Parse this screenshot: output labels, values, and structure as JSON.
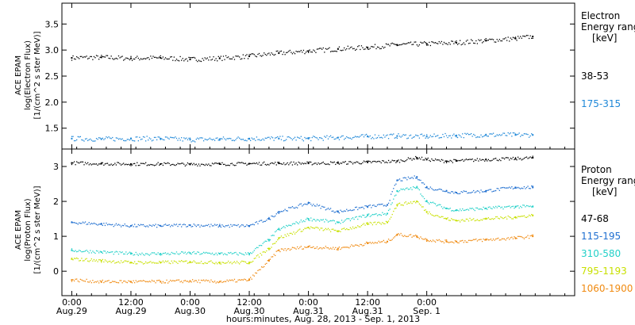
{
  "chart_data": [
    {
      "type": "scatter",
      "ylabel_lines": [
        "ACE EPAM",
        "log(Electron Flux)",
        "[1/(cm^2 s ster MeV)]"
      ],
      "y_ticks": [
        "3.5",
        "3.0",
        "2.5",
        "2.0",
        "1.5"
      ],
      "ylim": [
        1.1,
        3.9
      ],
      "legend_title": [
        "Electron",
        "Energy ranges",
        "[keV]"
      ],
      "series": [
        {
          "name": "38-53",
          "color": "#000000",
          "x": [
            0,
            6,
            12,
            18,
            24,
            30,
            36,
            42,
            48,
            54,
            60,
            66,
            72,
            78,
            84,
            90,
            93.5
          ],
          "values": [
            2.85,
            2.86,
            2.84,
            2.85,
            2.82,
            2.84,
            2.88,
            2.94,
            2.98,
            3.02,
            3.05,
            3.1,
            3.12,
            3.14,
            3.18,
            3.22,
            3.26
          ]
        },
        {
          "name": "175-315",
          "color": "#1f88d8",
          "x": [
            0,
            6,
            12,
            18,
            24,
            30,
            36,
            42,
            48,
            54,
            60,
            66,
            72,
            78,
            84,
            90,
            93.5
          ],
          "values": [
            1.3,
            1.29,
            1.3,
            1.3,
            1.28,
            1.29,
            1.3,
            1.3,
            1.3,
            1.32,
            1.34,
            1.35,
            1.34,
            1.36,
            1.37,
            1.37,
            1.37
          ]
        }
      ]
    },
    {
      "type": "scatter",
      "ylabel_lines": [
        "ACE EPAM",
        "log(Proton Flux)",
        "[1/(cm^2 s ster MeV)]"
      ],
      "y_ticks": [
        "3",
        "2",
        "1",
        "0"
      ],
      "ylim": [
        -0.7,
        3.5
      ],
      "legend_title": [
        "Proton",
        "Energy ranges",
        "[keV]"
      ],
      "series": [
        {
          "name": "47-68",
          "color": "#000000",
          "x": [
            0,
            6,
            12,
            18,
            24,
            30,
            36,
            42,
            48,
            54,
            60,
            66,
            70,
            72,
            76,
            78,
            84,
            90,
            93.5
          ],
          "values": [
            3.1,
            3.08,
            3.07,
            3.07,
            3.06,
            3.07,
            3.08,
            3.09,
            3.09,
            3.1,
            3.12,
            3.15,
            3.25,
            3.2,
            3.15,
            3.16,
            3.2,
            3.22,
            3.25
          ]
        },
        {
          "name": "115-195",
          "color": "#1f6fd0",
          "x": [
            0,
            6,
            12,
            18,
            24,
            30,
            36,
            40,
            42,
            48,
            54,
            60,
            64,
            66,
            70,
            72,
            76,
            78,
            84,
            90,
            93.5
          ],
          "values": [
            1.4,
            1.35,
            1.3,
            1.3,
            1.32,
            1.3,
            1.3,
            1.5,
            1.7,
            1.95,
            1.7,
            1.85,
            1.9,
            2.6,
            2.7,
            2.4,
            2.3,
            2.25,
            2.3,
            2.4,
            2.4
          ]
        },
        {
          "name": "310-580",
          "color": "#22d0c8",
          "x": [
            0,
            6,
            12,
            18,
            24,
            30,
            36,
            40,
            42,
            48,
            54,
            60,
            64,
            66,
            70,
            72,
            76,
            78,
            84,
            90,
            93.5
          ],
          "values": [
            0.6,
            0.55,
            0.5,
            0.5,
            0.52,
            0.5,
            0.5,
            0.9,
            1.2,
            1.5,
            1.4,
            1.6,
            1.65,
            2.3,
            2.4,
            2.0,
            1.8,
            1.75,
            1.8,
            1.85,
            1.85
          ]
        },
        {
          "name": "795-1193",
          "color": "#c8e000",
          "x": [
            0,
            6,
            12,
            18,
            24,
            30,
            36,
            40,
            42,
            48,
            54,
            60,
            64,
            66,
            70,
            72,
            76,
            78,
            84,
            90,
            93.5
          ],
          "values": [
            0.35,
            0.3,
            0.25,
            0.25,
            0.27,
            0.25,
            0.25,
            0.65,
            0.95,
            1.25,
            1.15,
            1.35,
            1.4,
            1.9,
            2.0,
            1.7,
            1.5,
            1.45,
            1.5,
            1.55,
            1.6
          ]
        },
        {
          "name": "1060-1900",
          "color": "#f08a10",
          "x": [
            0,
            6,
            12,
            18,
            24,
            30,
            36,
            40,
            42,
            48,
            54,
            60,
            64,
            66,
            70,
            72,
            76,
            78,
            84,
            90,
            93.5
          ],
          "values": [
            -0.25,
            -0.3,
            -0.3,
            -0.3,
            -0.28,
            -0.3,
            -0.25,
            0.3,
            0.6,
            0.7,
            0.65,
            0.8,
            0.85,
            1.05,
            1.0,
            0.9,
            0.85,
            0.85,
            0.9,
            0.95,
            1.0
          ]
        }
      ]
    }
  ],
  "x_axis": {
    "xlim": [
      -2,
      102
    ],
    "ticks": [
      {
        "x": 0,
        "time": "0:00",
        "date": "Aug.29"
      },
      {
        "x": 12,
        "time": "12:00",
        "date": "Aug.29"
      },
      {
        "x": 24,
        "time": "0:00",
        "date": "Aug.30"
      },
      {
        "x": 36,
        "time": "12:00",
        "date": "Aug.30"
      },
      {
        "x": 48,
        "time": "0:00",
        "date": "Aug.31"
      },
      {
        "x": 60,
        "time": "12:00",
        "date": "Aug.31"
      },
      {
        "x": 72,
        "time": "0:00",
        "date": "Sep. 1"
      }
    ],
    "label": "hours:minutes, Aug. 28, 2013 - Sep.  1, 2013"
  }
}
